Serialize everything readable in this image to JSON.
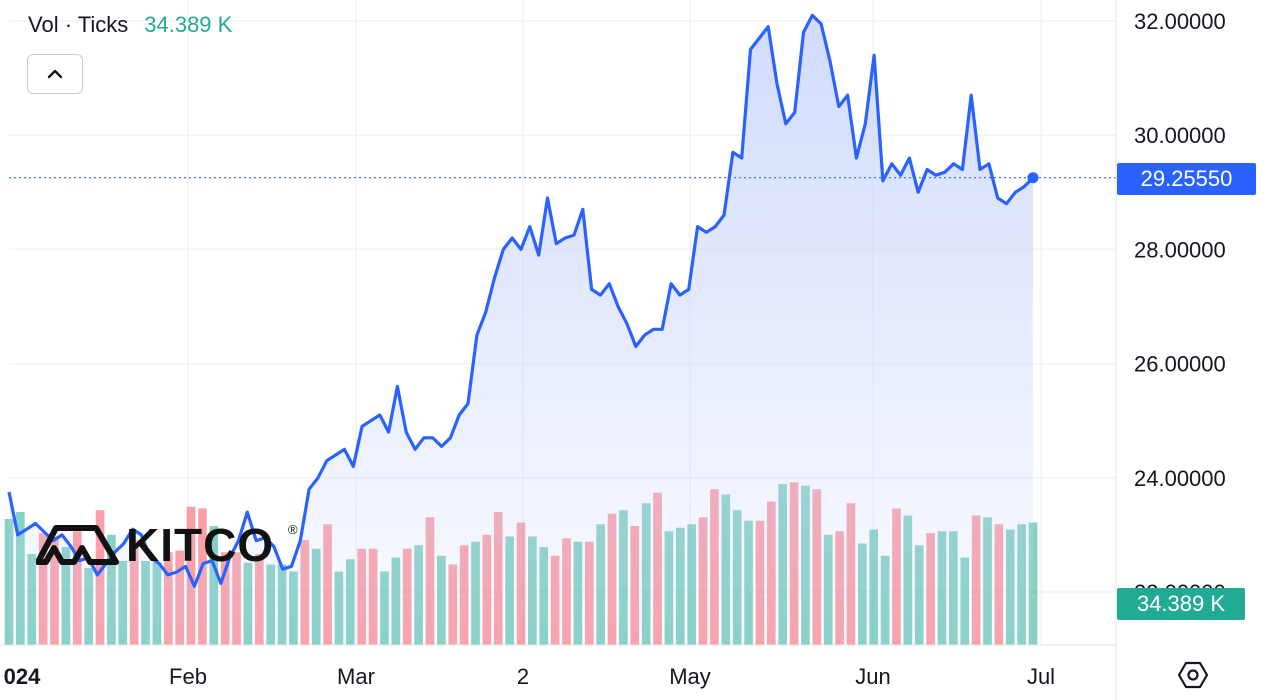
{
  "legend": {
    "label": "Vol · Ticks",
    "value": "34.389 K"
  },
  "last_price_label": "29.25550",
  "volume_label": "34.389 K",
  "logo": {
    "text": "KITCO",
    "mark": "®"
  },
  "colors": {
    "line": "#2962ff",
    "area_top": "#c9d5fb",
    "up_volume": "#22ab94",
    "down_volume": "#f7525f",
    "grid": "#f0f3fa",
    "last_price_bg": "#2962ff",
    "volume_label_bg": "#22ab94"
  },
  "icons": {
    "collapse": "chevron-up-icon",
    "settings": "settings-icon"
  },
  "chart_data": {
    "type": "line",
    "x_tick_labels": [
      "024",
      "Feb",
      "Mar",
      "2",
      "May",
      "Jun",
      "Jul"
    ],
    "y_tick_labels": [
      "32.00000",
      "30.00000",
      "28.00000",
      "26.00000",
      "24.00000",
      "22.00000"
    ],
    "ylim": [
      21.0,
      32.3
    ],
    "x_range": [
      "2024-01-02",
      "2024-07-03"
    ],
    "grid": true,
    "series": [
      {
        "values": [
          23.75,
          23.0,
          23.1,
          23.2,
          23.05,
          22.9,
          23.0,
          22.8,
          22.55,
          22.6,
          22.3,
          22.5,
          22.7,
          22.85,
          23.1,
          23.0,
          22.6,
          22.5,
          22.3,
          22.35,
          22.45,
          22.1,
          22.5,
          22.55,
          22.15,
          22.6,
          22.9,
          23.4,
          22.9,
          22.95,
          22.8,
          22.4,
          22.45,
          22.9,
          23.8,
          24.0,
          24.3,
          24.4,
          24.5,
          24.2,
          24.9,
          25.0,
          25.1,
          24.8,
          25.6,
          24.8,
          24.5,
          24.7,
          24.7,
          24.55,
          24.7,
          25.1,
          25.3,
          26.5,
          26.9,
          27.5,
          28.0,
          28.2,
          28.0,
          28.4,
          27.9,
          28.9,
          28.1,
          28.2,
          28.25,
          28.7,
          27.3,
          27.2,
          27.4,
          27.0,
          26.7,
          26.3,
          26.5,
          26.6,
          26.6,
          27.4,
          27.2,
          27.3,
          28.4,
          28.3,
          28.4,
          28.6,
          29.7,
          29.6,
          31.5,
          31.7,
          31.9,
          30.9,
          30.2,
          30.4,
          31.8,
          32.1,
          31.95,
          31.3,
          30.5,
          30.7,
          29.6,
          30.2,
          31.4,
          29.2,
          29.5,
          29.3,
          29.6,
          29.0,
          29.4,
          29.3,
          29.35,
          29.5,
          29.4,
          30.7,
          29.4,
          29.5,
          28.9,
          28.8,
          29.0,
          29.1,
          29.2557
        ]
      }
    ],
    "volume": {
      "values": [
        7.2,
        7.6,
        5.2,
        6.4,
        6.2,
        5.6,
        6.5,
        4.4,
        7.7,
        6.3,
        4.8,
        6.0,
        4.8,
        4.7,
        5.3,
        5.4,
        7.9,
        7.8,
        6.8,
        5.3,
        5.3,
        4.7,
        5.2,
        4.6,
        4.6,
        4.2,
        6.0,
        5.5,
        6.9,
        4.2,
        4.9,
        5.5,
        5.5,
        4.2,
        5.0,
        5.5,
        5.7,
        7.3,
        5.1,
        4.6,
        5.7,
        5.9,
        6.3,
        7.6,
        6.2,
        7.0,
        6.2,
        5.6,
        5.1,
        6.1,
        5.9,
        5.9,
        6.9,
        7.5,
        7.7,
        6.8,
        8.1,
        8.7,
        6.5,
        6.7,
        6.9,
        7.3,
        8.9,
        8.6,
        7.7,
        7.1,
        7.1,
        8.2,
        9.2,
        9.3,
        9.1,
        8.9,
        6.3,
        6.5,
        8.1,
        5.8,
        6.6,
        5.1,
        7.8,
        7.4,
        5.7,
        6.4,
        6.5,
        6.5,
        5.0,
        7.4,
        7.3,
        6.9,
        6.6,
        6.9,
        7.0
      ],
      "up": [
        true,
        true,
        true,
        false,
        false,
        true,
        false,
        true,
        false,
        true,
        true,
        false,
        true,
        true,
        false,
        false,
        false,
        false,
        true,
        false,
        false,
        true,
        false,
        true,
        true,
        true,
        false,
        true,
        false,
        true,
        true,
        false,
        false,
        true,
        true,
        false,
        true,
        false,
        true,
        false,
        false,
        true,
        false,
        false,
        true,
        false,
        true,
        true,
        false,
        false,
        true,
        false,
        true,
        false,
        true,
        false,
        true,
        false,
        true,
        true,
        true,
        false,
        false,
        true,
        true,
        true,
        false,
        false,
        true,
        false,
        true,
        false,
        true,
        false,
        false,
        true,
        true,
        true,
        false,
        true,
        true,
        false,
        true,
        true,
        true,
        false,
        true,
        false,
        true,
        true,
        true
      ]
    },
    "last_value": 29.2557
  }
}
